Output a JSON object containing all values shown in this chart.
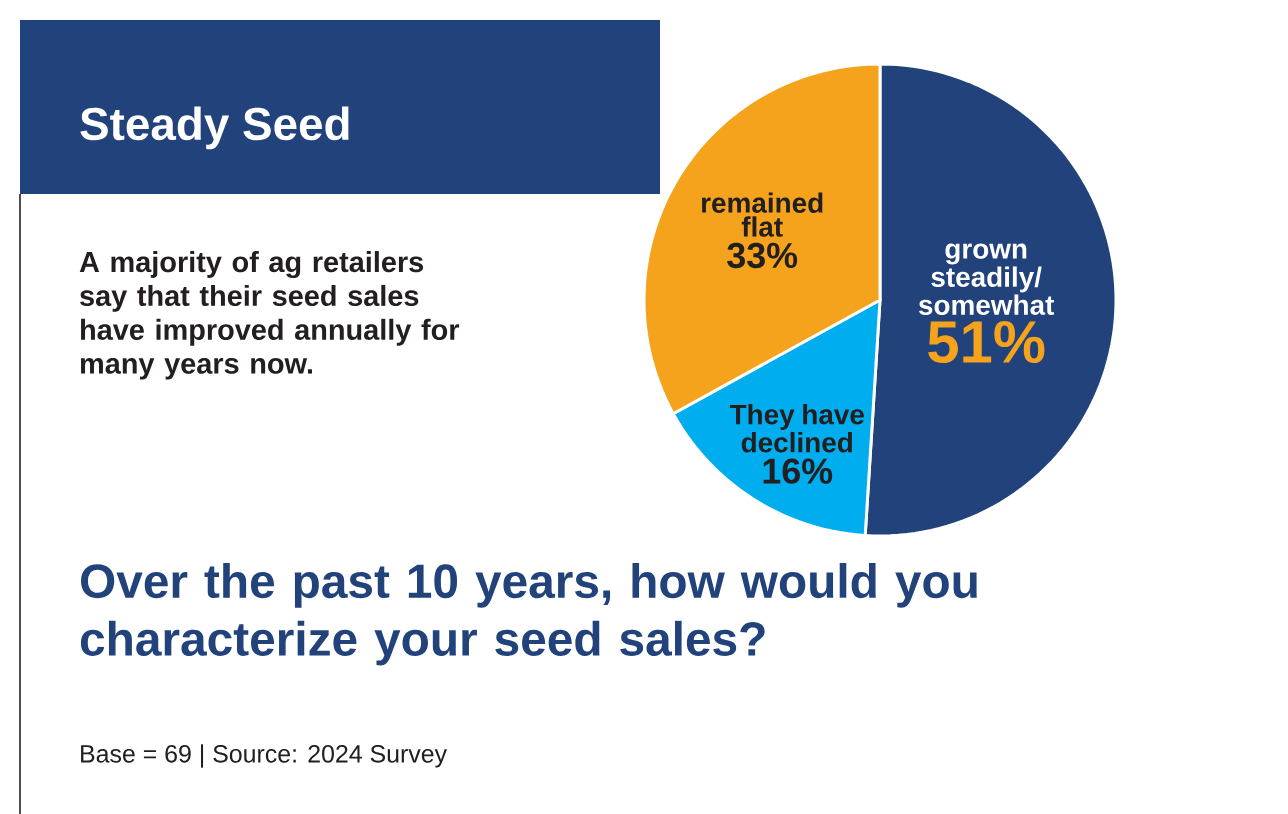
{
  "chart_data": {
    "type": "pie",
    "title": "Steady Seed",
    "subtitle": "A majority of ag retailers say that their seed sales have improved annually for many years now.",
    "categories": [
      "grown steadily/ somewhat",
      "They have declined",
      "remained flat"
    ],
    "values": [
      51,
      16,
      33
    ],
    "value_labels": [
      "51%",
      "16%",
      "33%"
    ],
    "colors": [
      "#21427a",
      "#00aeef",
      "#f5a31c"
    ],
    "annotations": [
      "Over the past 10 years, how would you characterize your seed sales?",
      "Base = 69 | Source: 2024 Survey"
    ]
  }
}
